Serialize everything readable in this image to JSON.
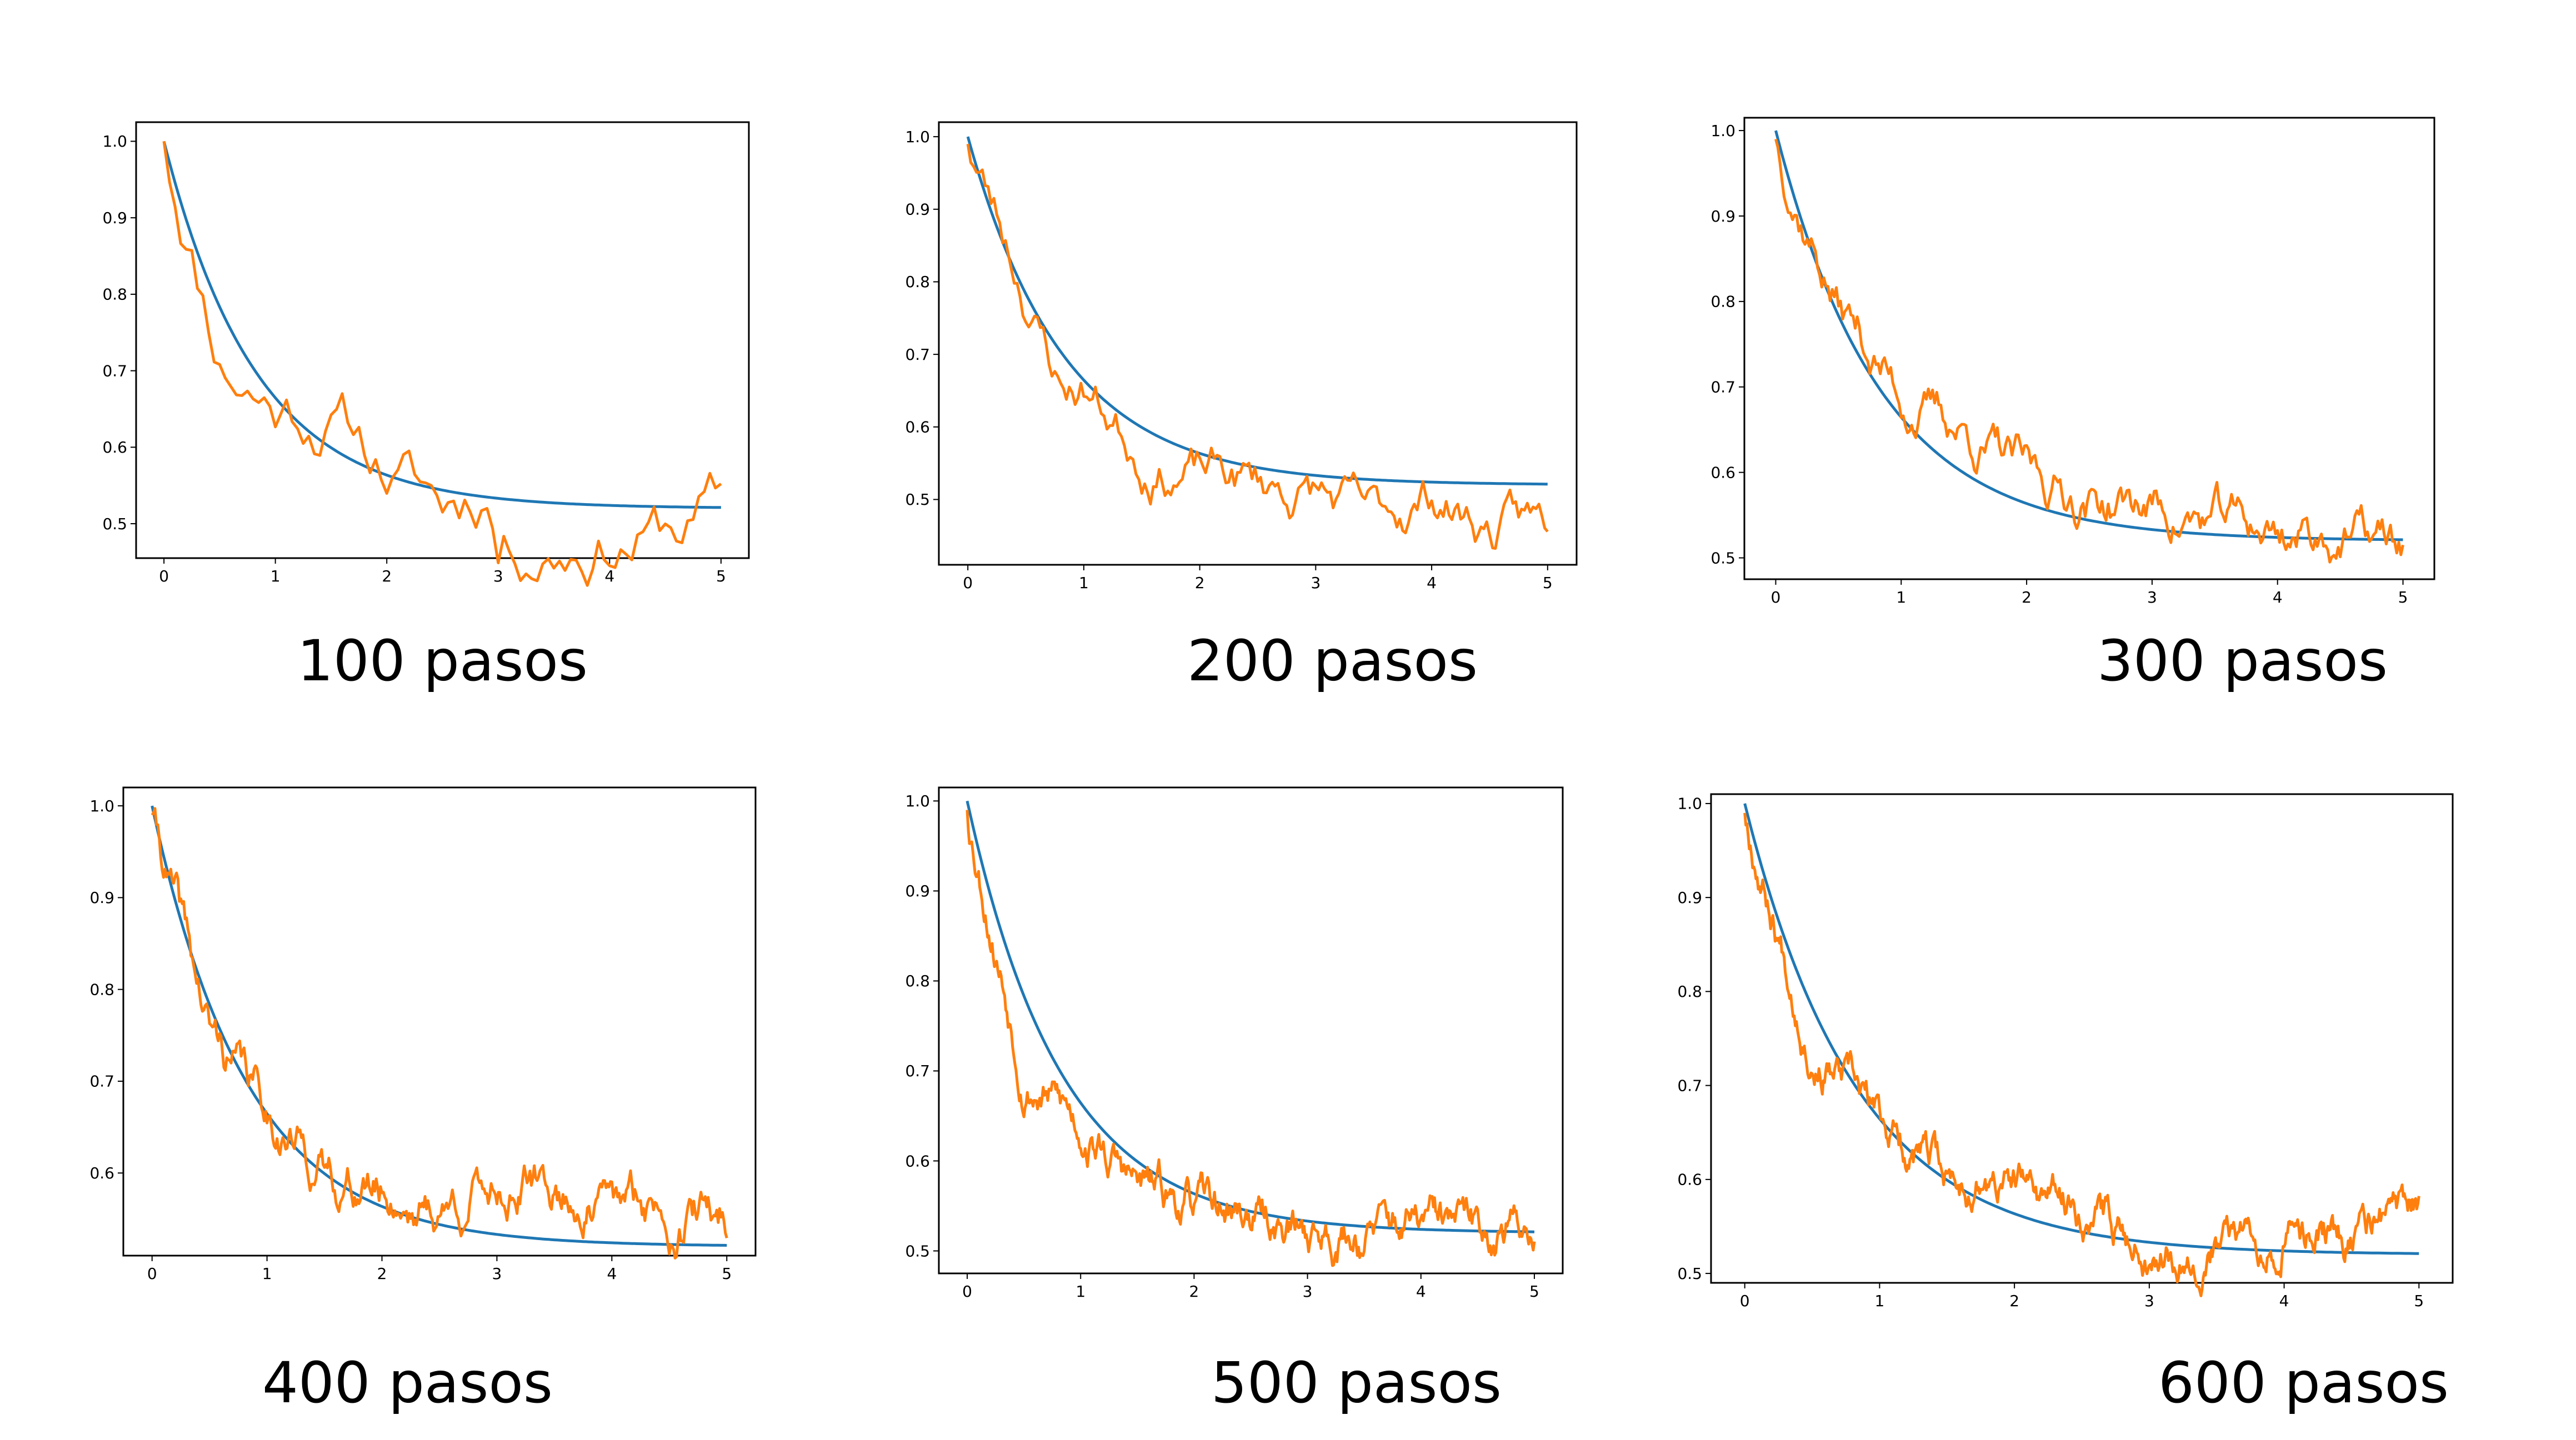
{
  "colors": {
    "model": "#1f77b4",
    "simulation": "#ff7f0e",
    "frame": "#000000"
  },
  "chart_data": [
    {
      "type": "line",
      "caption": "100 pasos",
      "steps": 100,
      "seed": 11,
      "xlim": [
        -0.25,
        5.25
      ],
      "ylim": [
        0.455,
        1.025
      ],
      "xticks": [
        "0",
        "1",
        "2",
        "3",
        "4",
        "5"
      ],
      "yticks": [
        "0.5",
        "0.6",
        "0.7",
        "0.8",
        "0.9",
        "1.0"
      ],
      "series": [
        {
          "kind": "exponential",
          "formula": "0.52 + 0.48*exp(-1.2*t)",
          "x_range": [
            0,
            5
          ]
        },
        {
          "kind": "noisy-walk",
          "x_range": [
            0,
            5
          ],
          "anchors": [
            [
              0,
              1.0
            ],
            [
              0.5,
              0.74
            ],
            [
              1,
              0.67
            ],
            [
              1.5,
              0.66
            ],
            [
              2,
              0.58
            ],
            [
              2.5,
              0.52
            ],
            [
              2.9,
              0.56
            ],
            [
              3,
              0.49
            ],
            [
              3.5,
              0.5
            ],
            [
              4,
              0.51
            ],
            [
              4.5,
              0.5
            ],
            [
              5,
              0.52
            ]
          ]
        }
      ]
    },
    {
      "type": "line",
      "caption": "200 pasos",
      "steps": 200,
      "seed": 23,
      "xlim": [
        -0.25,
        5.25
      ],
      "ylim": [
        0.41,
        1.02
      ],
      "xticks": [
        "0",
        "1",
        "2",
        "3",
        "4",
        "5"
      ],
      "yticks": [
        "0.5",
        "0.6",
        "0.7",
        "0.8",
        "0.9",
        "1.0"
      ],
      "series": [
        {
          "kind": "exponential",
          "formula": "0.52 + 0.48*exp(-1.2*t)",
          "x_range": [
            0,
            5
          ]
        },
        {
          "kind": "noisy-walk",
          "x_range": [
            0,
            5
          ],
          "anchors": [
            [
              0,
              0.99
            ],
            [
              0.5,
              0.79
            ],
            [
              0.8,
              0.66
            ],
            [
              1,
              0.66
            ],
            [
              1.5,
              0.57
            ],
            [
              2,
              0.54
            ],
            [
              2.5,
              0.52
            ],
            [
              3,
              0.51
            ],
            [
              3.5,
              0.46
            ],
            [
              4,
              0.51
            ],
            [
              4.5,
              0.46
            ],
            [
              5,
              0.46
            ]
          ]
        }
      ]
    },
    {
      "type": "line",
      "caption": "300 pasos",
      "steps": 300,
      "seed": 37,
      "xlim": [
        -0.25,
        5.25
      ],
      "ylim": [
        0.475,
        1.015
      ],
      "xticks": [
        "0",
        "1",
        "2",
        "3",
        "4",
        "5"
      ],
      "yticks": [
        "0.5",
        "0.6",
        "0.7",
        "0.8",
        "0.9",
        "1.0"
      ],
      "series": [
        {
          "kind": "exponential",
          "formula": "0.52 + 0.48*exp(-1.2*t)",
          "x_range": [
            0,
            5
          ]
        },
        {
          "kind": "noisy-walk",
          "x_range": [
            0,
            5
          ],
          "anchors": [
            [
              0,
              0.99
            ],
            [
              0.5,
              0.8
            ],
            [
              1,
              0.69
            ],
            [
              1.4,
              0.66
            ],
            [
              1.6,
              0.64
            ],
            [
              2,
              0.59
            ],
            [
              2.5,
              0.57
            ],
            [
              3,
              0.56
            ],
            [
              3.5,
              0.54
            ],
            [
              4,
              0.53
            ],
            [
              4.5,
              0.53
            ],
            [
              5,
              0.51
            ]
          ]
        }
      ]
    },
    {
      "type": "line",
      "caption": "400 pasos",
      "steps": 400,
      "seed": 41,
      "xlim": [
        -0.25,
        5.25
      ],
      "ylim": [
        0.51,
        1.02
      ],
      "xticks": [
        "0",
        "1",
        "2",
        "3",
        "4",
        "5"
      ],
      "yticks": [
        "0.6",
        "0.7",
        "0.8",
        "0.9",
        "1.0"
      ],
      "series": [
        {
          "kind": "exponential",
          "formula": "0.52 + 0.48*exp(-1.2*t)",
          "x_range": [
            0,
            5
          ]
        },
        {
          "kind": "noisy-walk",
          "x_range": [
            0,
            5
          ],
          "anchors": [
            [
              0,
              0.99
            ],
            [
              0.5,
              0.75
            ],
            [
              1,
              0.67
            ],
            [
              1.5,
              0.6
            ],
            [
              2,
              0.58
            ],
            [
              2.5,
              0.56
            ],
            [
              3,
              0.59
            ],
            [
              3.5,
              0.58
            ],
            [
              4,
              0.56
            ],
            [
              4.5,
              0.56
            ],
            [
              5,
              0.55
            ]
          ]
        }
      ]
    },
    {
      "type": "line",
      "caption": "500 pasos",
      "steps": 500,
      "seed": 53,
      "xlim": [
        -0.25,
        5.25
      ],
      "ylim": [
        0.475,
        1.015
      ],
      "xticks": [
        "0",
        "1",
        "2",
        "3",
        "4",
        "5"
      ],
      "yticks": [
        "0.5",
        "0.6",
        "0.7",
        "0.8",
        "0.9",
        "1.0"
      ],
      "series": [
        {
          "kind": "exponential",
          "formula": "0.52 + 0.48*exp(-1.2*t)",
          "x_range": [
            0,
            5
          ]
        },
        {
          "kind": "noisy-walk",
          "x_range": [
            0,
            5
          ],
          "anchors": [
            [
              0,
              0.99
            ],
            [
              0.5,
              0.7
            ],
            [
              1,
              0.64
            ],
            [
              1.5,
              0.57
            ],
            [
              2,
              0.55
            ],
            [
              2.5,
              0.54
            ],
            [
              3,
              0.52
            ],
            [
              3.5,
              0.52
            ],
            [
              4,
              0.53
            ],
            [
              4.5,
              0.52
            ],
            [
              5,
              0.53
            ]
          ]
        }
      ]
    },
    {
      "type": "line",
      "caption": "600 pasos",
      "steps": 600,
      "seed": 67,
      "xlim": [
        -0.25,
        5.25
      ],
      "ylim": [
        0.49,
        1.01
      ],
      "xticks": [
        "0",
        "1",
        "2",
        "3",
        "4",
        "5"
      ],
      "yticks": [
        "0.5",
        "0.6",
        "0.7",
        "0.8",
        "0.9",
        "1.0"
      ],
      "series": [
        {
          "kind": "exponential",
          "formula": "0.52 + 0.48*exp(-1.2*t)",
          "x_range": [
            0,
            5
          ]
        },
        {
          "kind": "noisy-walk",
          "x_range": [
            0,
            5
          ],
          "anchors": [
            [
              0,
              0.99
            ],
            [
              0.5,
              0.74
            ],
            [
              1,
              0.66
            ],
            [
              1.5,
              0.6
            ],
            [
              2,
              0.59
            ],
            [
              2.5,
              0.57
            ],
            [
              3,
              0.53
            ],
            [
              3.5,
              0.53
            ],
            [
              4,
              0.55
            ],
            [
              4.5,
              0.54
            ],
            [
              5,
              0.57
            ]
          ]
        }
      ]
    }
  ]
}
